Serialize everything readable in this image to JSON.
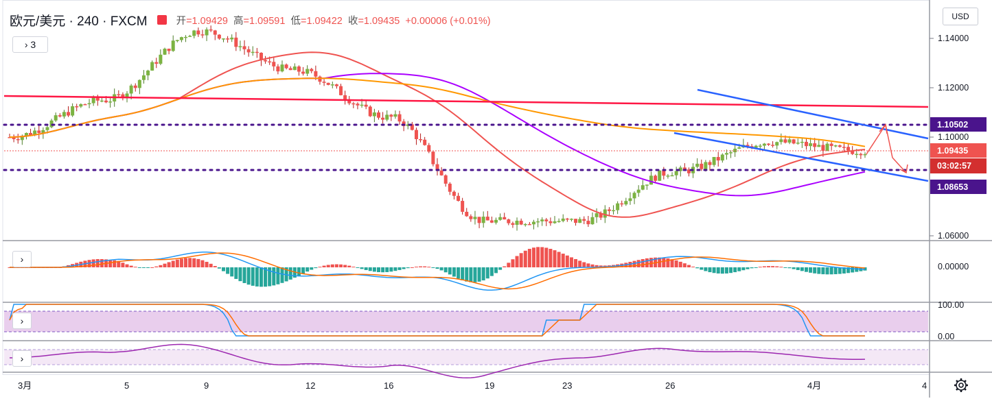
{
  "header": {
    "symbol": "欧元/美元 · 240 · FXCM",
    "ohlc": [
      {
        "k": "开",
        "v": "1.09429"
      },
      {
        "k": "高",
        "v": "1.09591"
      },
      {
        "k": "低",
        "v": "1.09422"
      },
      {
        "k": "收",
        "v": "1.09435"
      }
    ],
    "change": "+0.00006 (+0.01%)"
  },
  "currency_button": "USD",
  "indicator_toggle": "› 3",
  "pane_toggle": "›",
  "price_labels": {
    "upper_level": "1.10502",
    "last_price": "1.09435",
    "countdown": "03:02:57",
    "lower_level": "1.08653"
  },
  "colors": {
    "up": "#26a69a",
    "down": "#ef5350",
    "body_up": "#7cb342",
    "ma_red": "#ef5350",
    "ma_purple": "#aa00ff",
    "ma_orange": "#ff9800",
    "channel": "#2962ff",
    "level_line": "#4a148c"
  },
  "chart_data": {
    "type": "candlestick",
    "title": "欧元/美元 · 240 · FXCM",
    "y_axis_ticks": [
      "1.14000",
      "1.12000",
      "1.10000",
      "1.06000"
    ],
    "ylim": [
      1.056,
      1.152
    ],
    "x_axis_ticks": [
      "3月",
      "5",
      "9",
      "12",
      "16",
      "19",
      "23",
      "26",
      "4月",
      "4"
    ],
    "horizontal_levels": [
      1.10502,
      1.08653
    ],
    "last_price": 1.09435,
    "macd_ticks": [
      "0.00000"
    ],
    "stoch_ticks": [
      "100.00",
      "0.00"
    ],
    "close_path": [
      {
        "day": "3月",
        "close": 1.1
      },
      {
        "day": "5",
        "close": 1.115
      },
      {
        "day": "9",
        "close": 1.143
      },
      {
        "day": "12",
        "close": 1.127
      },
      {
        "day": "16",
        "close": 1.108
      },
      {
        "day": "19",
        "close": 1.066
      },
      {
        "day": "23",
        "close": 1.066
      },
      {
        "day": "26",
        "close": 1.086
      },
      {
        "day": "4月",
        "close": 1.098
      },
      {
        "day": "4",
        "close": 1.0944
      }
    ]
  }
}
